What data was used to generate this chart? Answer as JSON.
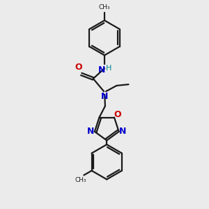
{
  "bg_color": "#ebebeb",
  "bond_color": "#1a1a1a",
  "N_color": "#0000cc",
  "O_color": "#cc0000",
  "H_color": "#008888",
  "line_width": 1.6,
  "dbo": 0.055,
  "xlim": [
    0,
    10
  ],
  "ylim": [
    0,
    10
  ]
}
